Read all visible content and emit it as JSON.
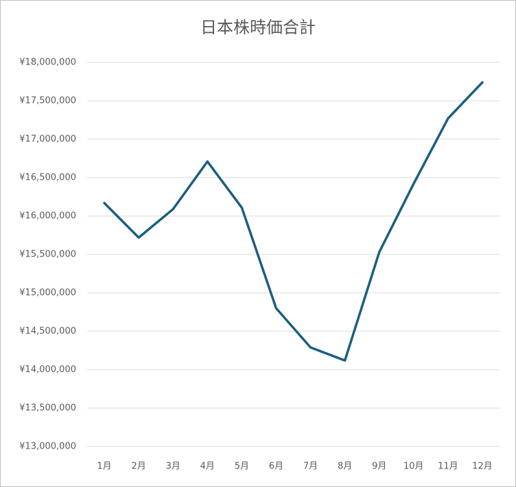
{
  "chart_data": {
    "type": "line",
    "title": "日本株時価合計",
    "categories": [
      "1月",
      "2月",
      "3月",
      "4月",
      "5月",
      "6月",
      "7月",
      "8月",
      "9月",
      "10月",
      "11月",
      "12月"
    ],
    "series": [
      {
        "name": "日本株時価合計",
        "color": "#1b5e80",
        "values": [
          16170000,
          15720000,
          16090000,
          16710000,
          16110000,
          14800000,
          14290000,
          14120000,
          15530000,
          16420000,
          17270000,
          17740000
        ]
      }
    ],
    "ylim": [
      13000000,
      18000000
    ],
    "yticks": [
      {
        "value": 13000000,
        "label": "¥13,000,000"
      },
      {
        "value": 13500000,
        "label": "¥13,500,000"
      },
      {
        "value": 14000000,
        "label": "¥14,000,000"
      },
      {
        "value": 14500000,
        "label": "¥14,500,000"
      },
      {
        "value": 15000000,
        "label": "¥15,000,000"
      },
      {
        "value": 15500000,
        "label": "¥15,500,000"
      },
      {
        "value": 16000000,
        "label": "¥16,000,000"
      },
      {
        "value": 16500000,
        "label": "¥16,500,000"
      },
      {
        "value": 17000000,
        "label": "¥17,000,000"
      },
      {
        "value": 17500000,
        "label": "¥17,500,000"
      },
      {
        "value": 18000000,
        "label": "¥18,000,000"
      }
    ],
    "grid": true
  }
}
